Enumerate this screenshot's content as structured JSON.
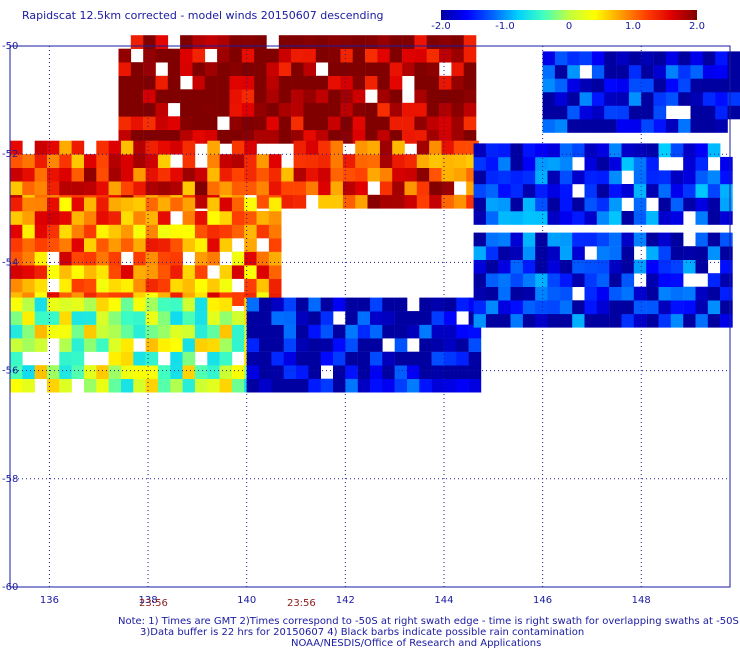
{
  "title": "Rapidscat 12.5km corrected - model winds 20150607 descending",
  "colorbar": {
    "ticks": [
      "-2.0",
      "-1.0",
      "0",
      "1.0",
      "2.0"
    ],
    "range": [
      -2.0,
      2.0
    ],
    "colors": [
      "#0000a0",
      "#0000ff",
      "#0060ff",
      "#00d0ff",
      "#40ffc0",
      "#c0ff40",
      "#ffff00",
      "#ffa000",
      "#ff4000",
      "#e00000",
      "#800000"
    ]
  },
  "chart_data": {
    "type": "heatmap",
    "title": "Rapidscat 12.5km corrected - model winds 20150607 descending",
    "xlabel": "",
    "ylabel": "",
    "x_ticks": [
      "136",
      "138",
      "140",
      "142",
      "144",
      "146",
      "148"
    ],
    "y_ticks": [
      "-50",
      "-52",
      "-54",
      "-56",
      "-58",
      "-60"
    ],
    "xlim": [
      135.2,
      149.8
    ],
    "ylim": [
      -60,
      -50
    ],
    "grid": true,
    "value_range": [
      -2.0,
      2.0
    ],
    "swaths": [
      {
        "lon": [
          135.2,
          144.6
        ],
        "lat": [
          -56.4,
          -50.0
        ],
        "description_regions": [
          {
            "lat_from": -50.0,
            "lat_to": -51.8,
            "lon_from": 137.4,
            "lon_to": 144.6,
            "value": 2.0
          },
          {
            "lat_from": -51.8,
            "lat_to": -53.0,
            "lon_from": 135.2,
            "lon_to": 144.6,
            "value": 1.3
          },
          {
            "lat_from": -53.0,
            "lat_to": -54.8,
            "lon_from": 135.2,
            "lon_to": 140.5,
            "value": 1.0
          },
          {
            "lat_from": -54.8,
            "lat_to": -56.4,
            "lon_from": 135.2,
            "lon_to": 140.0,
            "value": 0.0
          },
          {
            "lat_from": -54.8,
            "lat_to": -56.4,
            "lon_from": 140.0,
            "lon_to": 144.6,
            "value": -1.8
          }
        ]
      },
      {
        "lon": [
          144.6,
          149.8
        ],
        "lat": [
          -55.2,
          -50.2
        ],
        "description_regions": [
          {
            "lat_from": -51.8,
            "lat_to": -53.3,
            "lon_from": 144.6,
            "lon_to": 149.8,
            "value": -1.5
          },
          {
            "lat_from": -53.6,
            "lat_to": -55.2,
            "lon_from": 144.6,
            "lon_to": 149.8,
            "value": -1.6
          },
          {
            "lat_from": -50.2,
            "lat_to": -51.6,
            "lon_from": 146.0,
            "lon_to": 149.8,
            "value": -1.7
          }
        ]
      }
    ],
    "swath_times": [
      {
        "time": "23:56",
        "lon": 138.1
      },
      {
        "time": "23:56",
        "lon": 141.1
      }
    ]
  },
  "notes": {
    "line1": "Note: 1) Times are GMT 2)Times correspond to -50S at right swath edge - time is right swath for overlapping swaths at -50S",
    "line2": "3)Data buffer is 22 hrs for 20150607 4) Black barbs indicate possible rain contamination",
    "line3": "NOAA/NESDIS/Office of Research and Applications"
  }
}
